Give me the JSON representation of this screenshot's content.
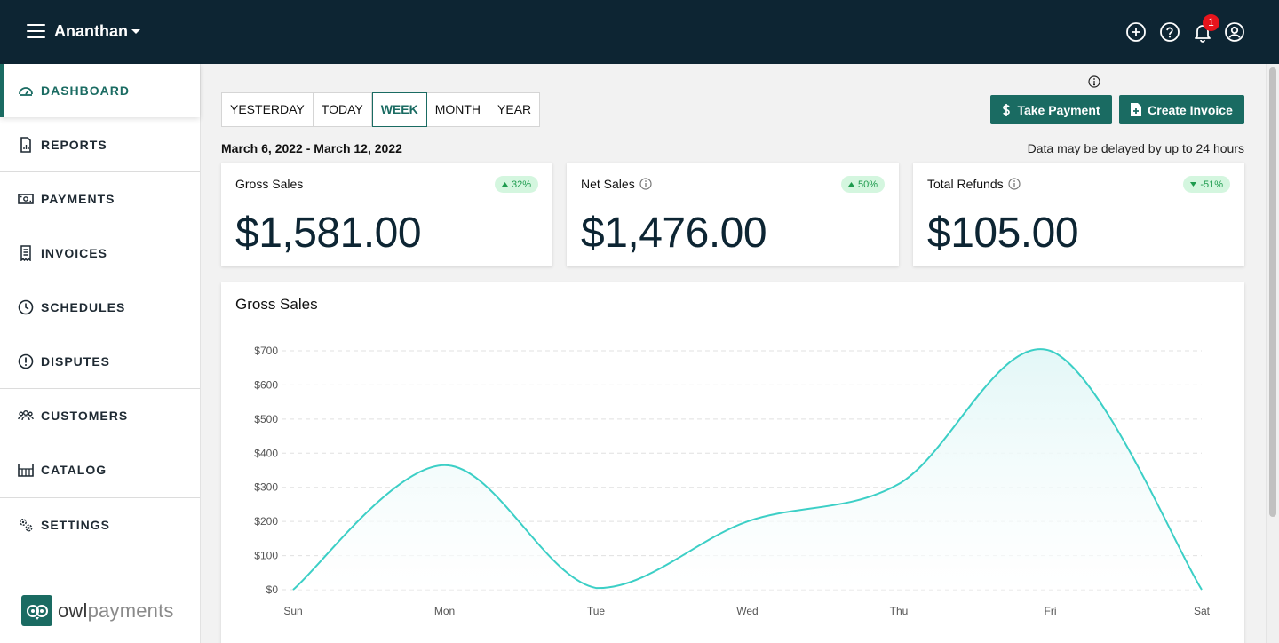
{
  "header": {
    "user_name": "Ananthan",
    "notification_count": "1",
    "icons": [
      "plus-circle-icon",
      "help-icon",
      "bell-icon",
      "account-icon"
    ]
  },
  "sidebar": {
    "items": [
      {
        "label": "DASHBOARD",
        "icon": "dashboard-icon",
        "active": true
      },
      {
        "label": "REPORTS",
        "icon": "report-icon"
      },
      {
        "label": "PAYMENTS",
        "icon": "payment-icon"
      },
      {
        "label": "INVOICES",
        "icon": "invoice-icon"
      },
      {
        "label": "SCHEDULES",
        "icon": "clock-icon"
      },
      {
        "label": "DISPUTES",
        "icon": "alert-icon"
      },
      {
        "label": "CUSTOMERS",
        "icon": "customers-icon"
      },
      {
        "label": "CATALOG",
        "icon": "catalog-icon"
      },
      {
        "label": "SETTINGS",
        "icon": "settings-icon"
      }
    ],
    "logo_text_1": "owl",
    "logo_text_2": "payments"
  },
  "periods": {
    "tabs": [
      "YESTERDAY",
      "TODAY",
      "WEEK",
      "MONTH",
      "YEAR"
    ],
    "active": "WEEK"
  },
  "actions": {
    "take_payment": "Take Payment",
    "create_invoice": "Create Invoice"
  },
  "date_range": "March 6, 2022 - March 12, 2022",
  "delay_note": "Data may be delayed by up to 24 hours",
  "stats": {
    "gross": {
      "title": "Gross Sales",
      "value": "$1,581.00",
      "change": "32%",
      "direction": "up"
    },
    "net": {
      "title": "Net Sales",
      "value": "$1,476.00",
      "change": "50%",
      "direction": "up"
    },
    "refunds": {
      "title": "Total Refunds",
      "value": "$105.00",
      "change": "-51%",
      "direction": "down"
    }
  },
  "chart_title": "Gross Sales",
  "chart_data": {
    "type": "area",
    "title": "Gross Sales",
    "categories": [
      "Sun",
      "Mon",
      "Tue",
      "Wed",
      "Thu",
      "Fri",
      "Sat"
    ],
    "series": [
      {
        "values": [
          0,
          365,
          5,
          200,
          310,
          700,
          0
        ]
      }
    ],
    "yticks": [
      "$0",
      "$100",
      "$200",
      "$300",
      "$400",
      "$500",
      "$600",
      "$700"
    ],
    "ylim": [
      0,
      700
    ],
    "grid": true,
    "line_color": "#3ccfc6",
    "fill_color": "#e3f7f7"
  },
  "colors": {
    "topbar": "#0d2533",
    "accent": "#1a6b62",
    "badge_bg": "#d4f6df",
    "badge_text": "#1e9b4e",
    "notification": "#e8141c"
  }
}
